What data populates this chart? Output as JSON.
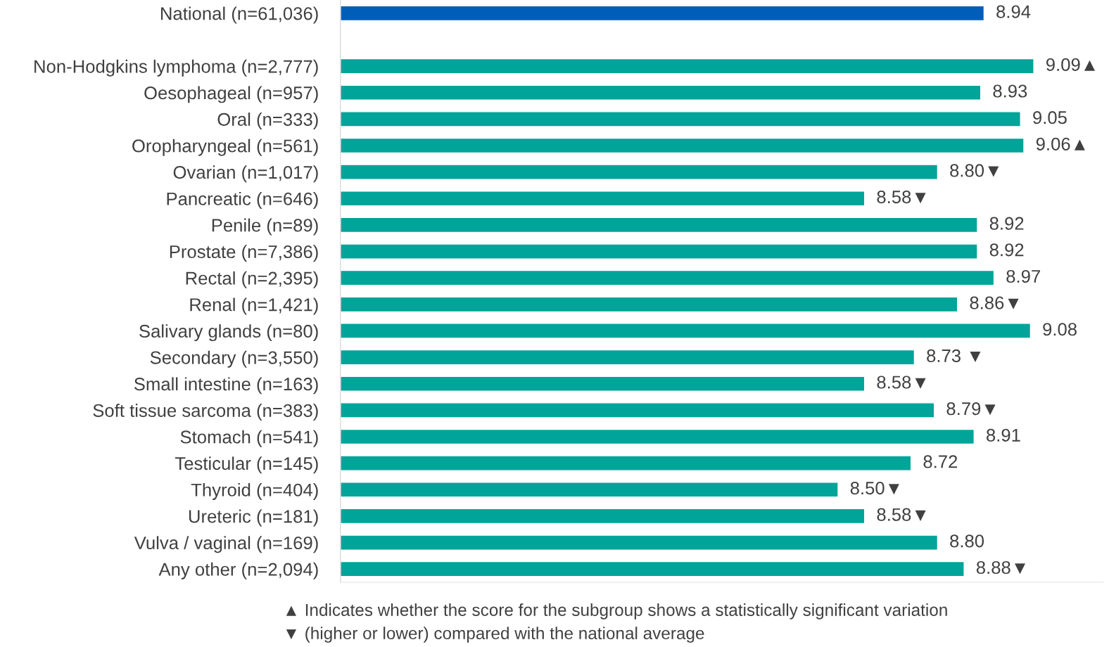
{
  "chart_data": {
    "type": "bar",
    "orientation": "horizontal",
    "categories": [
      "National (n=61,036)",
      null,
      "Non-Hodgkins lymphoma (n=2,777)",
      "Oesophageal (n=957)",
      "Oral (n=333)",
      "Oropharyngeal (n=561)",
      "Ovarian (n=1,017)",
      "Pancreatic (n=646)",
      "Penile (n=89)",
      "Prostate (n=7,386)",
      "Rectal (n=2,395)",
      "Renal (n=1,421)",
      "Salivary glands (n=80)",
      "Secondary (n=3,550)",
      "Small intestine (n=163)",
      "Soft tissue sarcoma (n=383)",
      "Stomach (n=541)",
      "Testicular (n=145)",
      "Thyroid (n=404)",
      "Ureteric (n=181)",
      "Vulva / vaginal (n=169)",
      "Any other (n=2,094)"
    ],
    "values": [
      8.94,
      null,
      9.09,
      8.93,
      9.05,
      9.06,
      8.8,
      8.58,
      8.92,
      8.92,
      8.97,
      8.86,
      9.08,
      8.73,
      8.58,
      8.79,
      8.91,
      8.72,
      8.5,
      8.58,
      8.8,
      8.88
    ],
    "value_labels": [
      "8.94",
      null,
      "9.09▲",
      "8.93",
      "9.05",
      "9.06▲",
      "8.80▼",
      "8.58▼",
      "8.92",
      "8.92",
      "8.97",
      "8.86▼",
      "9.08",
      "8.73 ▼",
      "8.58▼",
      "8.79▼",
      "8.91",
      "8.72",
      "8.50▼",
      "8.58▼",
      "8.80",
      "8.88▼"
    ],
    "colors": [
      "#005eb8",
      null,
      "#00a499",
      "#00a499",
      "#00a499",
      "#00a499",
      "#00a499",
      "#00a499",
      "#00a499",
      "#00a499",
      "#00a499",
      "#00a499",
      "#00a499",
      "#00a499",
      "#00a499",
      "#00a499",
      "#00a499",
      "#00a499",
      "#00a499",
      "#00a499",
      "#00a499",
      "#00a499"
    ],
    "xlim": [
      7.0,
      9.3
    ],
    "tick_labels": "y",
    "grid": false,
    "legend": false,
    "annotations": [
      "▲ Indicates whether the score for the subgroup shows a statistically significant variation",
      "▼ (higher or lower) compared with the national average"
    ]
  }
}
